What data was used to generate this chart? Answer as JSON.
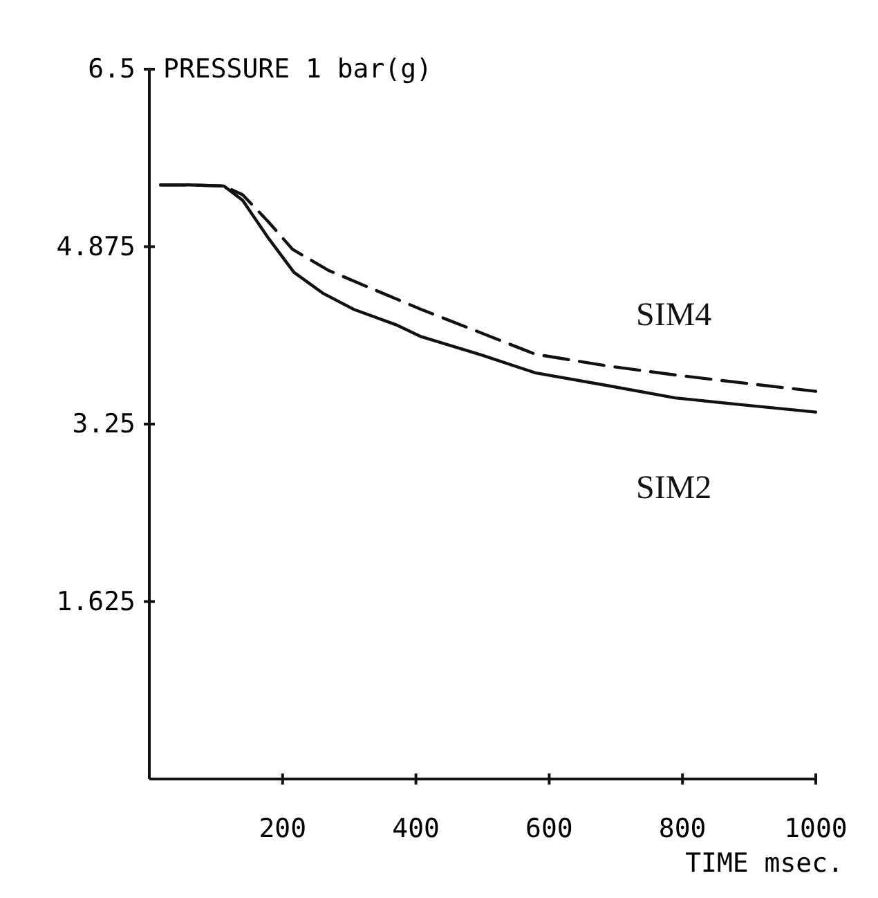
{
  "chart_data": {
    "type": "line",
    "ylabel": "PRESSURE 1  bar(g)",
    "xlabel": "TIME  msec.",
    "xlim": [
      0,
      1000
    ],
    "ylim": [
      0,
      6.5
    ],
    "xticks": [
      200,
      400,
      600,
      800,
      1000
    ],
    "yticks": [
      1.625,
      3.25,
      4.875,
      6.5
    ],
    "grid": false,
    "marker": "none",
    "series": [
      {
        "name": "SIM4",
        "color": "#111111",
        "line_style": "dashed",
        "x": [
          17,
          60,
          112,
          140,
          179,
          215,
          268,
          330,
          408,
          500,
          579,
          690,
          789,
          900,
          1000
        ],
        "values": [
          5.44,
          5.44,
          5.43,
          5.35,
          5.1,
          4.85,
          4.66,
          4.5,
          4.3,
          4.08,
          3.89,
          3.78,
          3.7,
          3.62,
          3.55
        ]
      },
      {
        "name": "SIM2",
        "color": "#111111",
        "line_style": "solid",
        "x": [
          17,
          60,
          112,
          140,
          179,
          217,
          260,
          307,
          370,
          408,
          500,
          579,
          690,
          789,
          900,
          1000
        ],
        "values": [
          5.44,
          5.44,
          5.43,
          5.3,
          4.95,
          4.64,
          4.45,
          4.3,
          4.16,
          4.05,
          3.88,
          3.72,
          3.6,
          3.49,
          3.42,
          3.36
        ]
      }
    ]
  }
}
